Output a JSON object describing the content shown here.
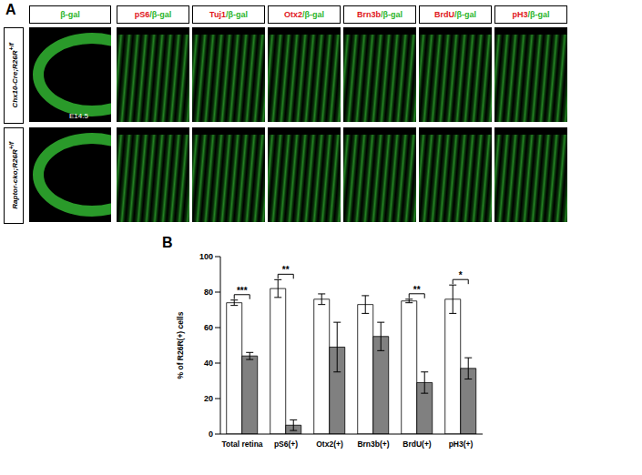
{
  "panel_labels": [
    "A",
    "B"
  ],
  "panel_a": {
    "column_headers": [
      "β-gal",
      "pS6/β-gal",
      "Tuj1/β-gal",
      "Otx2/β-gal",
      "Brn3b/β-gal",
      "BrdU/β-gal",
      "pH3/β-gal"
    ],
    "row_labels": [
      "Chx10-Cre;R26R+/f",
      "Raptor-cko;R26R+/f"
    ],
    "stage_label": "E14.5"
  },
  "chart_data": {
    "type": "bar",
    "y_label": "% of R26R(+) cells",
    "categories": [
      "Total retina",
      "pS6(+)",
      "Otx2(+)",
      "Brn3b(+)",
      "BrdU(+)",
      "pH3(+)"
    ],
    "series": [
      {
        "color": "#ffffff",
        "values": [
          74,
          82,
          76,
          73,
          75,
          76
        ],
        "errors": [
          1.5,
          5,
          3,
          5,
          1,
          8
        ]
      },
      {
        "color": "#808080",
        "values": [
          44,
          5,
          49,
          55,
          29,
          37
        ],
        "errors": [
          2,
          3,
          14,
          8,
          6,
          6
        ]
      }
    ],
    "ylim": [
      0,
      100
    ],
    "yticks": [
      0,
      20,
      40,
      60,
      80,
      100
    ],
    "grid": false,
    "annotations": [
      {
        "category": "Total retina",
        "label": "***"
      },
      {
        "category": "pS6(+)",
        "label": "**"
      },
      {
        "category": "BrdU(+)",
        "label": "**"
      },
      {
        "category": "pH3(+)",
        "label": "*"
      }
    ]
  }
}
